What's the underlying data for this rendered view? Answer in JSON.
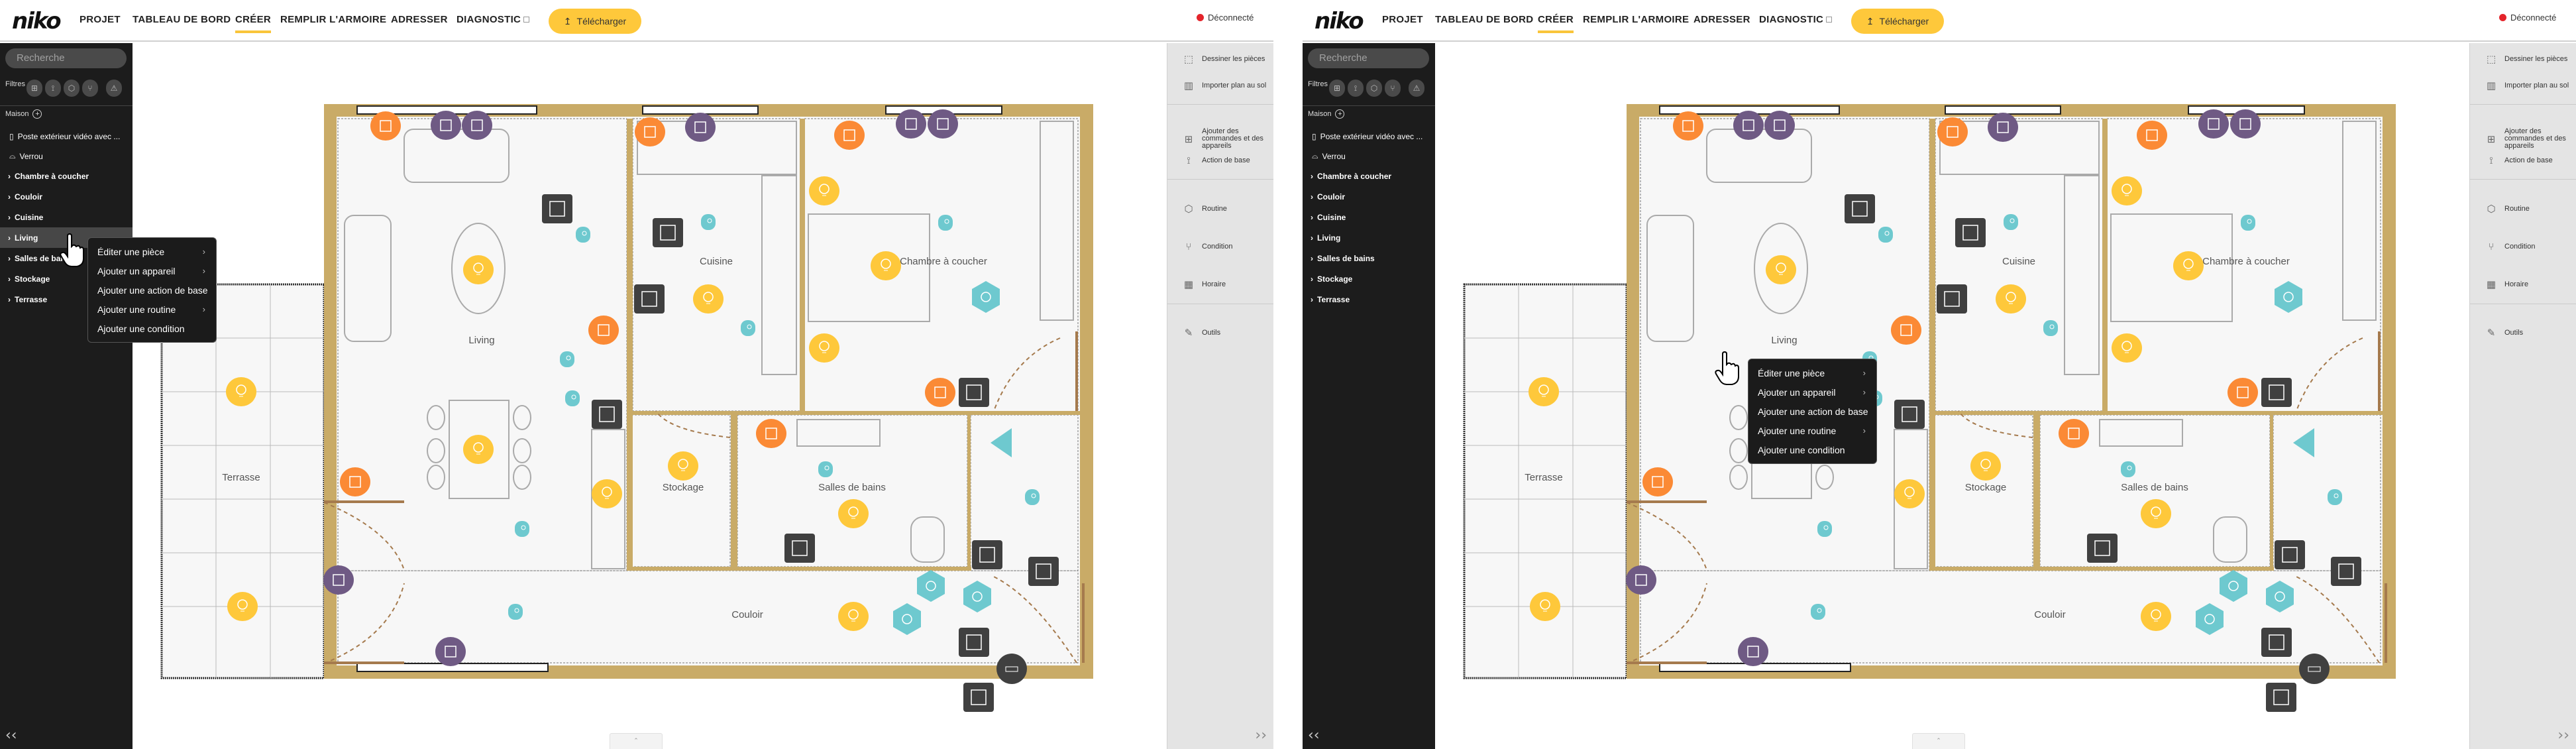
{
  "header": {
    "logo": "niko",
    "nav": [
      {
        "label": "PROJET",
        "active": false
      },
      {
        "label": "TABLEAU DE BORD",
        "active": false
      },
      {
        "label": "CRÉER",
        "active": true
      },
      {
        "label": "REMPLIR L'ARMOIRE",
        "active": false
      },
      {
        "label": "ADRESSER",
        "active": false
      },
      {
        "label": "DIAGNOSTIC",
        "active": false,
        "external": true
      }
    ],
    "download_label": "Télécharger",
    "status_label": "Déconnecté",
    "status_color": "#e4242b",
    "accent_color": "#fec83b"
  },
  "sidebar": {
    "search_placeholder": "Recherche",
    "filters_label": "Filtres",
    "filter_icons": [
      "add-control-icon",
      "basic-action-icon",
      "routine-icon",
      "condition-icon",
      "warning-icon"
    ],
    "house_label": "Maison",
    "devices": [
      {
        "label": "Poste extérieur vidéo avec ...",
        "icon": "video-doorbell-icon"
      },
      {
        "label": "Verrou",
        "icon": "lock-icon"
      }
    ],
    "rooms": [
      "Chambre à coucher",
      "Couloir",
      "Cuisine",
      "Living",
      "Salles de bains",
      "Stockage",
      "Terrasse"
    ]
  },
  "toolbar": {
    "groups": [
      [
        {
          "label": "Dessiner les pièces",
          "icon": "draw-rooms-icon"
        },
        {
          "label": "Importer plan au sol",
          "icon": "map-icon"
        }
      ],
      [
        {
          "label": "Ajouter des commandes et des appareils",
          "icon": "add-device-icon"
        },
        {
          "label": "Action de base",
          "icon": "basic-action-icon"
        }
      ],
      [
        {
          "label": "Routine",
          "icon": "routine-icon"
        },
        {
          "label": "Condition",
          "icon": "condition-icon"
        },
        {
          "label": "Horaire",
          "icon": "calendar-icon"
        }
      ],
      [
        {
          "label": "Outils",
          "icon": "tools-icon"
        }
      ]
    ],
    "calendar_day": "21"
  },
  "context_menu": [
    {
      "label": "Éditer une pièce",
      "submenu": true
    },
    {
      "label": "Ajouter un appareil",
      "submenu": true
    },
    {
      "label": "Ajouter une action de base",
      "submenu": false
    },
    {
      "label": "Ajouter une routine",
      "submenu": true
    },
    {
      "label": "Ajouter une condition",
      "submenu": false
    }
  ],
  "floorplan": {
    "rooms": [
      "Living",
      "Cuisine",
      "Chambre à coucher",
      "Terrasse",
      "Stockage",
      "Salles de bains",
      "Couloir"
    ],
    "colors": {
      "wall": "#c9ab67",
      "floor": "#f7f7f7",
      "heating": "#fb8a35",
      "shutter": "#6f5a84",
      "control": "#404040",
      "light": "#fec83b",
      "action": "#6ec9cf"
    }
  },
  "panels": [
    {
      "hovered_room": "Living",
      "menu_context": "sidebar"
    },
    {
      "hovered_room": "Living",
      "menu_context": "floorplan"
    }
  ]
}
